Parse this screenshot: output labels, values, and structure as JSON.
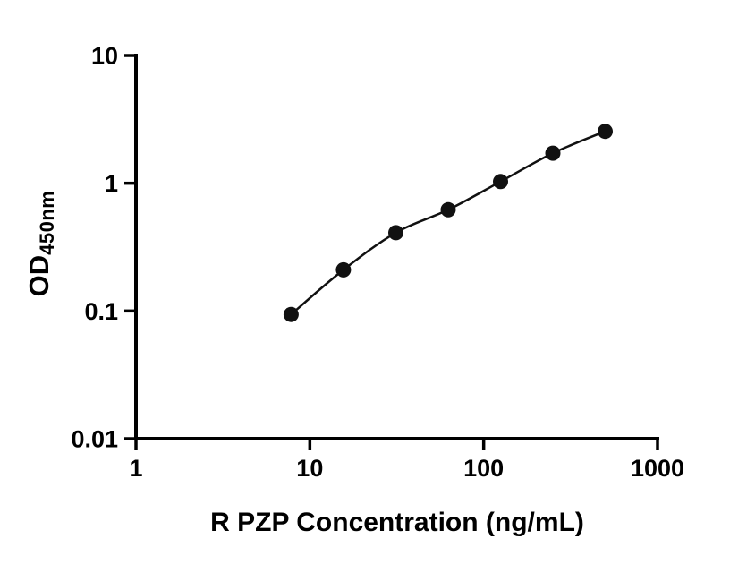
{
  "chart_data": {
    "type": "scatter",
    "title": "",
    "xlabel": "R PZP Concentration (ng/mL)",
    "ylabel_main": "OD",
    "ylabel_sub": "450nm",
    "x_scale": "log",
    "y_scale": "log",
    "xlim": [
      1,
      1000
    ],
    "ylim": [
      0.01,
      10
    ],
    "grid": false,
    "legend": "none",
    "x_ticks": [
      {
        "value": 1,
        "label": "1"
      },
      {
        "value": 10,
        "label": "10"
      },
      {
        "value": 100,
        "label": "100"
      },
      {
        "value": 1000,
        "label": "1000"
      }
    ],
    "y_ticks": [
      {
        "value": 0.01,
        "label": "0.01"
      },
      {
        "value": 0.1,
        "label": "0.1"
      },
      {
        "value": 1,
        "label": "1"
      },
      {
        "value": 10,
        "label": "10"
      }
    ],
    "series": [
      {
        "x": [
          7.8,
          15.6,
          31.25,
          62.5,
          125,
          250,
          500
        ],
        "y": [
          0.094,
          0.21,
          0.41,
          0.62,
          1.03,
          1.72,
          2.55
        ]
      }
    ]
  },
  "style": {
    "background": "#ffffff",
    "axis_color": "#000000",
    "line_color": "#111111",
    "point_color": "#111111",
    "label_color": "#000000"
  }
}
